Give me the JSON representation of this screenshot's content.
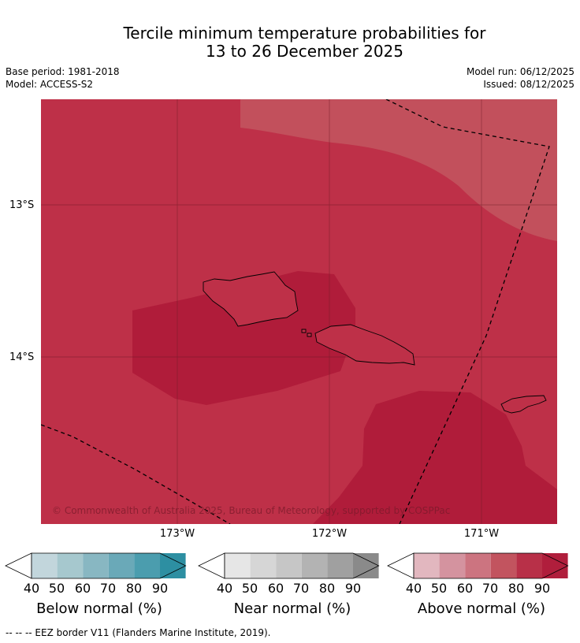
{
  "title_line1": "Tercile minimum temperature probabilities for",
  "title_line2": "13 to 26 December 2025",
  "meta": {
    "base_period": "Base period: 1981-2018",
    "model": "Model: ACCESS-S2",
    "model_run": "Model run: 06/12/2025",
    "issued": "Issued: 08/12/2025"
  },
  "map": {
    "lat_labels": [
      "13°S",
      "14°S"
    ],
    "lon_labels": [
      "173°W",
      "172°W",
      "171°W"
    ],
    "copyright": "© Commonwealth of Australia 2025, Bureau of Meteorology, supported by COSPPac"
  },
  "colorbars": [
    {
      "label": "Below normal (%)",
      "ticks": [
        "40",
        "50",
        "60",
        "70",
        "80",
        "90"
      ],
      "colors": [
        "#c2d6dc",
        "#a6c8ce",
        "#88b7c2",
        "#6aa9b8",
        "#4b9dae",
        "#2d8fa2"
      ]
    },
    {
      "label": "Near normal (%)",
      "ticks": [
        "40",
        "50",
        "60",
        "70",
        "80",
        "90"
      ],
      "colors": [
        "#e6e6e6",
        "#d6d6d6",
        "#c6c6c6",
        "#b3b3b3",
        "#a0a0a0",
        "#8a8a8a"
      ]
    },
    {
      "label": "Above normal (%)",
      "ticks": [
        "40",
        "50",
        "60",
        "70",
        "80",
        "90"
      ],
      "colors": [
        "#e2b7bf",
        "#d4939f",
        "#cc7480",
        "#c2545f",
        "#b83048",
        "#b01e3c"
      ]
    }
  ],
  "footer": "--  --  -- EEZ border V11 (Flanders Marine Institute, 2019).",
  "colors": {
    "zone_70": "#c2505c",
    "zone_80": "#be3048",
    "zone_90": "#b01c3a"
  }
}
